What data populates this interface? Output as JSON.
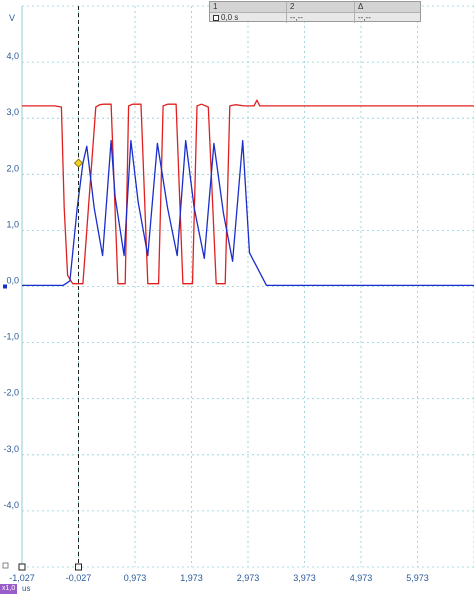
{
  "cursor_table": {
    "headers": [
      "1",
      "2",
      "Δ"
    ],
    "values": [
      "0,0 s",
      "--,--",
      "--,--"
    ]
  },
  "unit_badge": "x1,0",
  "x_unit": "us",
  "chart_data": {
    "type": "line",
    "ylabel": "V",
    "xlabel": "us",
    "xlim": [
      -1.027,
      6.973
    ],
    "ylim": [
      -5.0,
      5.0
    ],
    "grid": true,
    "x_ticks": [
      "-1,027",
      "-0,027",
      "0,973",
      "1,973",
      "2,973",
      "3,973",
      "4,973",
      "5,973"
    ],
    "y_ticks": [
      "4,0",
      "3,0",
      "2,0",
      "1,0",
      "0,0",
      "-1,0",
      "-2,0",
      "-3,0",
      "-4,0"
    ],
    "cursor_x": -0.027,
    "colors": {
      "red": "#e02020",
      "blue": "#1a2ecc",
      "grid": "#8ecfd6",
      "axis_text": "#2a5a9a"
    },
    "series": [
      {
        "color": "#e02020",
        "x": [
          -1.027,
          -0.45,
          -0.33,
          -0.28,
          -0.22,
          -0.13,
          0.05,
          0.28,
          0.35,
          0.42,
          0.55,
          0.67,
          0.8,
          0.86,
          0.93,
          1.08,
          1.2,
          1.39,
          1.47,
          1.55,
          1.7,
          1.82,
          1.99,
          2.07,
          2.15,
          2.27,
          2.41,
          2.57,
          2.65,
          2.75,
          2.9,
          3.08,
          3.13,
          3.18,
          3.4,
          4.5,
          6.973
        ],
        "y": [
          3.22,
          3.22,
          3.2,
          1.4,
          0.2,
          0.05,
          0.05,
          3.2,
          3.24,
          3.25,
          3.25,
          0.05,
          0.05,
          3.22,
          3.25,
          3.25,
          0.05,
          0.05,
          3.22,
          3.25,
          3.25,
          0.05,
          0.05,
          3.22,
          3.25,
          3.2,
          0.05,
          0.05,
          3.22,
          3.24,
          3.22,
          3.22,
          3.32,
          3.22,
          3.22,
          3.22,
          3.22
        ]
      },
      {
        "color": "#1a2ecc",
        "x": [
          -1.027,
          -0.3,
          -0.18,
          -0.05,
          0.05,
          0.12,
          0.25,
          0.4,
          0.55,
          0.62,
          0.78,
          0.9,
          1.03,
          1.2,
          1.37,
          1.55,
          1.72,
          1.87,
          2.02,
          2.2,
          2.37,
          2.54,
          2.7,
          2.88,
          3.0,
          3.3,
          4.0,
          5.0,
          6.973
        ],
        "y": [
          0.02,
          0.02,
          0.1,
          1.4,
          2.2,
          2.5,
          1.4,
          0.55,
          2.6,
          1.6,
          0.55,
          2.6,
          1.5,
          0.55,
          2.55,
          1.4,
          0.55,
          2.6,
          1.4,
          0.5,
          2.55,
          1.3,
          0.45,
          2.6,
          0.6,
          0.02,
          0.02,
          0.02,
          0.02
        ]
      }
    ]
  }
}
